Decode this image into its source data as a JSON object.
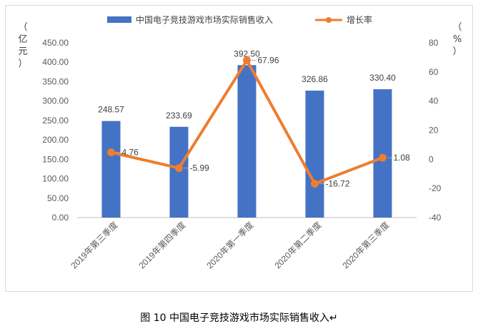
{
  "chart_data": {
    "type": "bar",
    "categories": [
      "2019年第三季度",
      "2019年第四季度",
      "2020年第一季度",
      "2020年第二季度",
      "2020年第三季度"
    ],
    "series": [
      {
        "name": "中国电子竞技游戏市场实际销售收入",
        "type": "bar",
        "axis": "left",
        "values": [
          248.57,
          233.69,
          392.5,
          326.86,
          330.4
        ],
        "labels": [
          "248.57",
          "233.69",
          "392.50",
          "326.86",
          "330.40"
        ],
        "color": "#4472c4"
      },
      {
        "name": "增长率",
        "type": "line",
        "axis": "right",
        "values": [
          4.76,
          -5.99,
          67.96,
          -16.72,
          1.08
        ],
        "labels": [
          "4.76",
          "-5.99",
          "67.96",
          "-16.72",
          "1.08"
        ],
        "color": "#ed7d31"
      }
    ],
    "ylabel": "（亿元）",
    "y2label": "（%）",
    "ylim": [
      0,
      450
    ],
    "y2lim": [
      -40,
      80
    ],
    "yticks": [
      "0.00",
      "50.00",
      "100.00",
      "150.00",
      "200.00",
      "250.00",
      "300.00",
      "350.00",
      "400.00",
      "450.00"
    ],
    "y2ticks": [
      "-40",
      "-20",
      "0",
      "20",
      "40",
      "60",
      "80"
    ],
    "legend_position": "top",
    "grid": false
  },
  "caption": "图 10  中国电子竞技游戏市场实际销售收入↵"
}
